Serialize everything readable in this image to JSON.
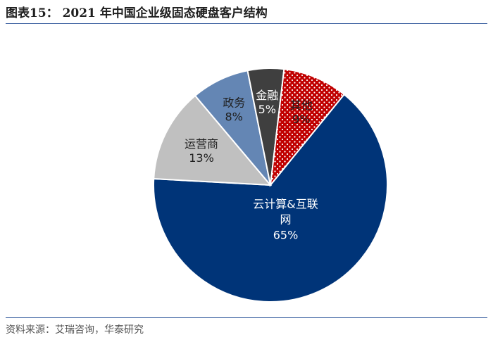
{
  "header": {
    "title": "图表15： 2021 年中国企业级固态硬盘客户结构"
  },
  "footer": {
    "source": "资料来源：艾瑞咨询，华泰研究"
  },
  "chart_data": {
    "type": "pie",
    "title": "图表15： 2021 年中国企业级固态硬盘客户结构",
    "slices": [
      {
        "name": "云计算&互联网",
        "value": 65,
        "label": "65%",
        "color": "#003478",
        "pattern": "none",
        "text_color": "#ffffff"
      },
      {
        "name": "运营商",
        "value": 13,
        "label": "13%",
        "color": "#c0c0c0",
        "pattern": "none",
        "text_color": "#1f1f1f"
      },
      {
        "name": "政务",
        "value": 8,
        "label": "8%",
        "color": "#6486b4",
        "pattern": "none",
        "text_color": "#1f1f1f"
      },
      {
        "name": "金融",
        "value": 5,
        "label": "5%",
        "color": "#3f3f3f",
        "pattern": "none",
        "text_color": "#ffffff"
      },
      {
        "name": "其他",
        "value": 9,
        "label": "9%",
        "color": "#c00000",
        "pattern": "white-dots",
        "text_color": "#1f1f1f"
      }
    ],
    "legend": "none"
  }
}
